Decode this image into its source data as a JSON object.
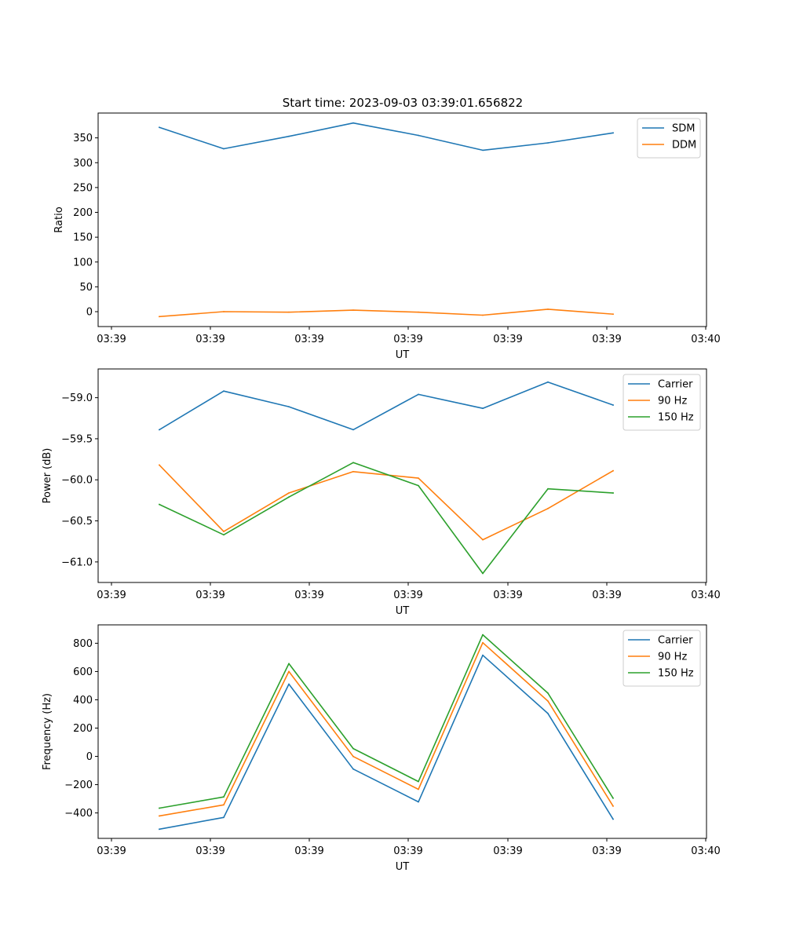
{
  "figure_title": "Start time: 2023-09-03 03:39:01.656822",
  "chart_data": [
    {
      "type": "line",
      "xlabel": "UT",
      "ylabel": "Ratio",
      "xtick_labels": [
        "03:39",
        "03:39",
        "03:39",
        "03:39",
        "03:39",
        "03:39",
        "03:40"
      ],
      "ylim": [
        -30,
        400
      ],
      "yticks": [
        0,
        50,
        100,
        150,
        200,
        250,
        300,
        350
      ],
      "ytick_labels": [
        "0",
        "50",
        "100",
        "150",
        "200",
        "250",
        "300",
        "350"
      ],
      "legend_position": "top-right",
      "series": [
        {
          "name": "SDM",
          "color": "#1f77b4",
          "values": [
            371,
            328,
            353,
            380,
            355,
            325,
            340,
            360
          ]
        },
        {
          "name": "DDM",
          "color": "#ff7f0e",
          "values": [
            -10,
            0,
            -1,
            3,
            -1,
            -7,
            5,
            -5
          ]
        }
      ]
    },
    {
      "type": "line",
      "xlabel": "UT",
      "ylabel": "Power (dB)",
      "xtick_labels": [
        "03:39",
        "03:39",
        "03:39",
        "03:39",
        "03:39",
        "03:39",
        "03:40"
      ],
      "ylim": [
        -61.25,
        -58.65
      ],
      "yticks": [
        -61.0,
        -60.5,
        -60.0,
        -59.5,
        -59.0
      ],
      "ytick_labels": [
        "−61.0",
        "−60.5",
        "−60.0",
        "−59.5",
        "−59.0"
      ],
      "legend_position": "top-right",
      "series": [
        {
          "name": "Carrier",
          "color": "#1f77b4",
          "values": [
            -59.39,
            -58.92,
            -59.11,
            -59.39,
            -58.96,
            -59.13,
            -58.81,
            -59.09
          ]
        },
        {
          "name": "90 Hz",
          "color": "#ff7f0e",
          "values": [
            -59.82,
            -60.63,
            -60.16,
            -59.9,
            -59.98,
            -60.73,
            -60.35,
            -59.89
          ]
        },
        {
          "name": "150 Hz",
          "color": "#2ca02c",
          "values": [
            -60.3,
            -60.67,
            -60.21,
            -59.79,
            -60.07,
            -61.14,
            -60.11,
            -60.16
          ]
        }
      ]
    },
    {
      "type": "line",
      "xlabel": "UT",
      "ylabel": "Frequency (Hz)",
      "xtick_labels": [
        "03:39",
        "03:39",
        "03:39",
        "03:39",
        "03:39",
        "03:39",
        "03:40"
      ],
      "ylim": [
        -580,
        930
      ],
      "yticks": [
        -400,
        -200,
        0,
        200,
        400,
        600,
        800
      ],
      "ytick_labels": [
        "−400",
        "−200",
        "0",
        "200",
        "400",
        "600",
        "800"
      ],
      "legend_position": "top-right",
      "series": [
        {
          "name": "Carrier",
          "color": "#1f77b4",
          "values": [
            -515,
            -432,
            511,
            -90,
            -322,
            715,
            303,
            -444
          ]
        },
        {
          "name": "90 Hz",
          "color": "#ff7f0e",
          "values": [
            -421,
            -343,
            600,
            -1,
            -233,
            804,
            391,
            -352
          ]
        },
        {
          "name": "150 Hz",
          "color": "#2ca02c",
          "values": [
            -366,
            -287,
            656,
            55,
            -178,
            860,
            447,
            -296
          ]
        }
      ]
    }
  ]
}
